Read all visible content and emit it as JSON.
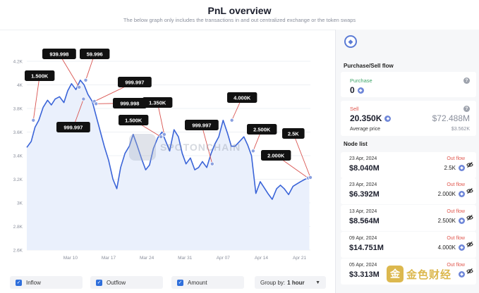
{
  "header": {
    "title": "PnL overview",
    "subtitle": "The below graph only includes the transactions in and out centralized exchange or the token swaps"
  },
  "watermark": {
    "text": "SPOTONCHAIN"
  },
  "legend": {
    "inflow": "Inflow",
    "outflow": "Outflow",
    "amount": "Amount",
    "group_by_label": "Group by:",
    "group_by_value": "1 hour"
  },
  "sidebar": {
    "flow_title": "Purchase/Sell flow",
    "purchase": {
      "label": "Purchase",
      "value": "0"
    },
    "sell": {
      "label": "Sell",
      "value": "20.350K",
      "usd": "$72.488M",
      "avg_label": "Average price",
      "avg_value": "$3.562K"
    },
    "node_title": "Node list",
    "nodes": [
      {
        "date": "23 Apr, 2024",
        "amount": "$8.040M",
        "flow": "Out flow",
        "qty": "2.5K"
      },
      {
        "date": "23 Apr, 2024",
        "amount": "$6.392M",
        "flow": "Out flow",
        "qty": "2.000K"
      },
      {
        "date": "13 Apr, 2024",
        "amount": "$8.564M",
        "flow": "Out flow",
        "qty": "2.500K"
      },
      {
        "date": "09 Apr, 2024",
        "amount": "$14.751M",
        "flow": "Out flow",
        "qty": "4.000K"
      },
      {
        "date": "05 Apr, 2024",
        "amount": "$3.313M",
        "flow": "Out flow",
        "qty": ""
      }
    ]
  },
  "brand_watermark": {
    "text": "金色财经"
  },
  "colors": {
    "line": "#3a64d8",
    "callout": "#111111",
    "marker": "#8aa0e0",
    "outflow": "#e0574e",
    "connector": "#d9534f"
  },
  "chart_data": {
    "type": "line",
    "title": "",
    "xlabel": "",
    "ylabel": "",
    "ylim": [
      2600,
      4200
    ],
    "y_ticks": [
      "2.6K",
      "2.8K",
      "3K",
      "3.2K",
      "3.4K",
      "3.6K",
      "3.8K",
      "4K",
      "4.2K"
    ],
    "y_tick_values": [
      2600,
      2800,
      3000,
      3200,
      3400,
      3600,
      3800,
      4000,
      4200
    ],
    "x_ticks": [
      "Mar 10",
      "Mar 17",
      "Mar 24",
      "Mar 31",
      "Apr 07",
      "Apr 14",
      "Apr 21"
    ],
    "x_tick_days": [
      8,
      15,
      22,
      29,
      36,
      43,
      50
    ],
    "x_range_days": [
      0,
      52
    ],
    "series": [
      {
        "x_days": [
          0,
          0.8,
          1.5,
          2.2,
          3,
          3.8,
          4.5,
          5.2,
          6,
          6.8,
          7.5,
          8.2,
          9,
          9.8,
          10.5,
          11.2,
          12,
          12.8,
          13.5,
          14.2,
          15,
          15.8,
          16.5,
          17.2,
          18,
          18.8,
          19.5,
          20.2,
          21,
          21.8,
          22.5,
          23.2,
          24,
          24.8,
          25.5,
          26.2,
          27,
          27.8,
          28.5,
          29.2,
          30,
          30.8,
          31.5,
          32.2,
          33,
          33.8,
          34.5,
          35.2,
          36,
          36.8,
          37.5,
          38.2,
          39,
          39.8,
          40.5,
          41.2,
          42,
          42.8,
          43.5,
          44.2,
          45,
          45.8,
          46.5,
          47.2,
          48,
          48.8,
          49.5,
          50.2,
          51,
          51.8
        ],
        "y": [
          3470,
          3520,
          3640,
          3700,
          3810,
          3870,
          3830,
          3880,
          3900,
          3850,
          3950,
          4010,
          3960,
          4040,
          4000,
          3920,
          3860,
          3720,
          3600,
          3480,
          3360,
          3200,
          3120,
          3300,
          3420,
          3480,
          3580,
          3490,
          3380,
          3280,
          3320,
          3460,
          3550,
          3600,
          3520,
          3440,
          3620,
          3560,
          3420,
          3330,
          3380,
          3280,
          3300,
          3350,
          3300,
          3420,
          3500,
          3560,
          3700,
          3590,
          3480,
          3480,
          3520,
          3560,
          3490,
          3400,
          3080,
          3180,
          3130,
          3080,
          3030,
          3120,
          3150,
          3120,
          3070,
          3140,
          3160,
          3180,
          3200,
          3210
        ]
      }
    ],
    "annotations": [
      {
        "label": "1.500K",
        "day": 1.2,
        "value": 3700
      },
      {
        "label": "939.998",
        "day": 9.6,
        "value": 3980
      },
      {
        "label": "59.996",
        "day": 10.8,
        "value": 4040
      },
      {
        "label": "999.997",
        "day": 10.4,
        "value": 3880
      },
      {
        "label": "999.997",
        "day": 12.4,
        "value": 3860
      },
      {
        "label": "999.998",
        "day": 12.7,
        "value": 3840
      },
      {
        "label": "1.500K",
        "day": 24.6,
        "value": 3560
      },
      {
        "label": "1.350K",
        "day": 25.2,
        "value": 3580
      },
      {
        "label": "999.997",
        "day": 34.0,
        "value": 3330
      },
      {
        "label": "4.000K",
        "day": 37.6,
        "value": 3700
      },
      {
        "label": "2.500K",
        "day": 41.5,
        "value": 3440
      },
      {
        "label": "2.000K",
        "day": 51.6,
        "value": 3210
      },
      {
        "label": "2.5K",
        "day": 52.0,
        "value": 3215
      }
    ]
  }
}
